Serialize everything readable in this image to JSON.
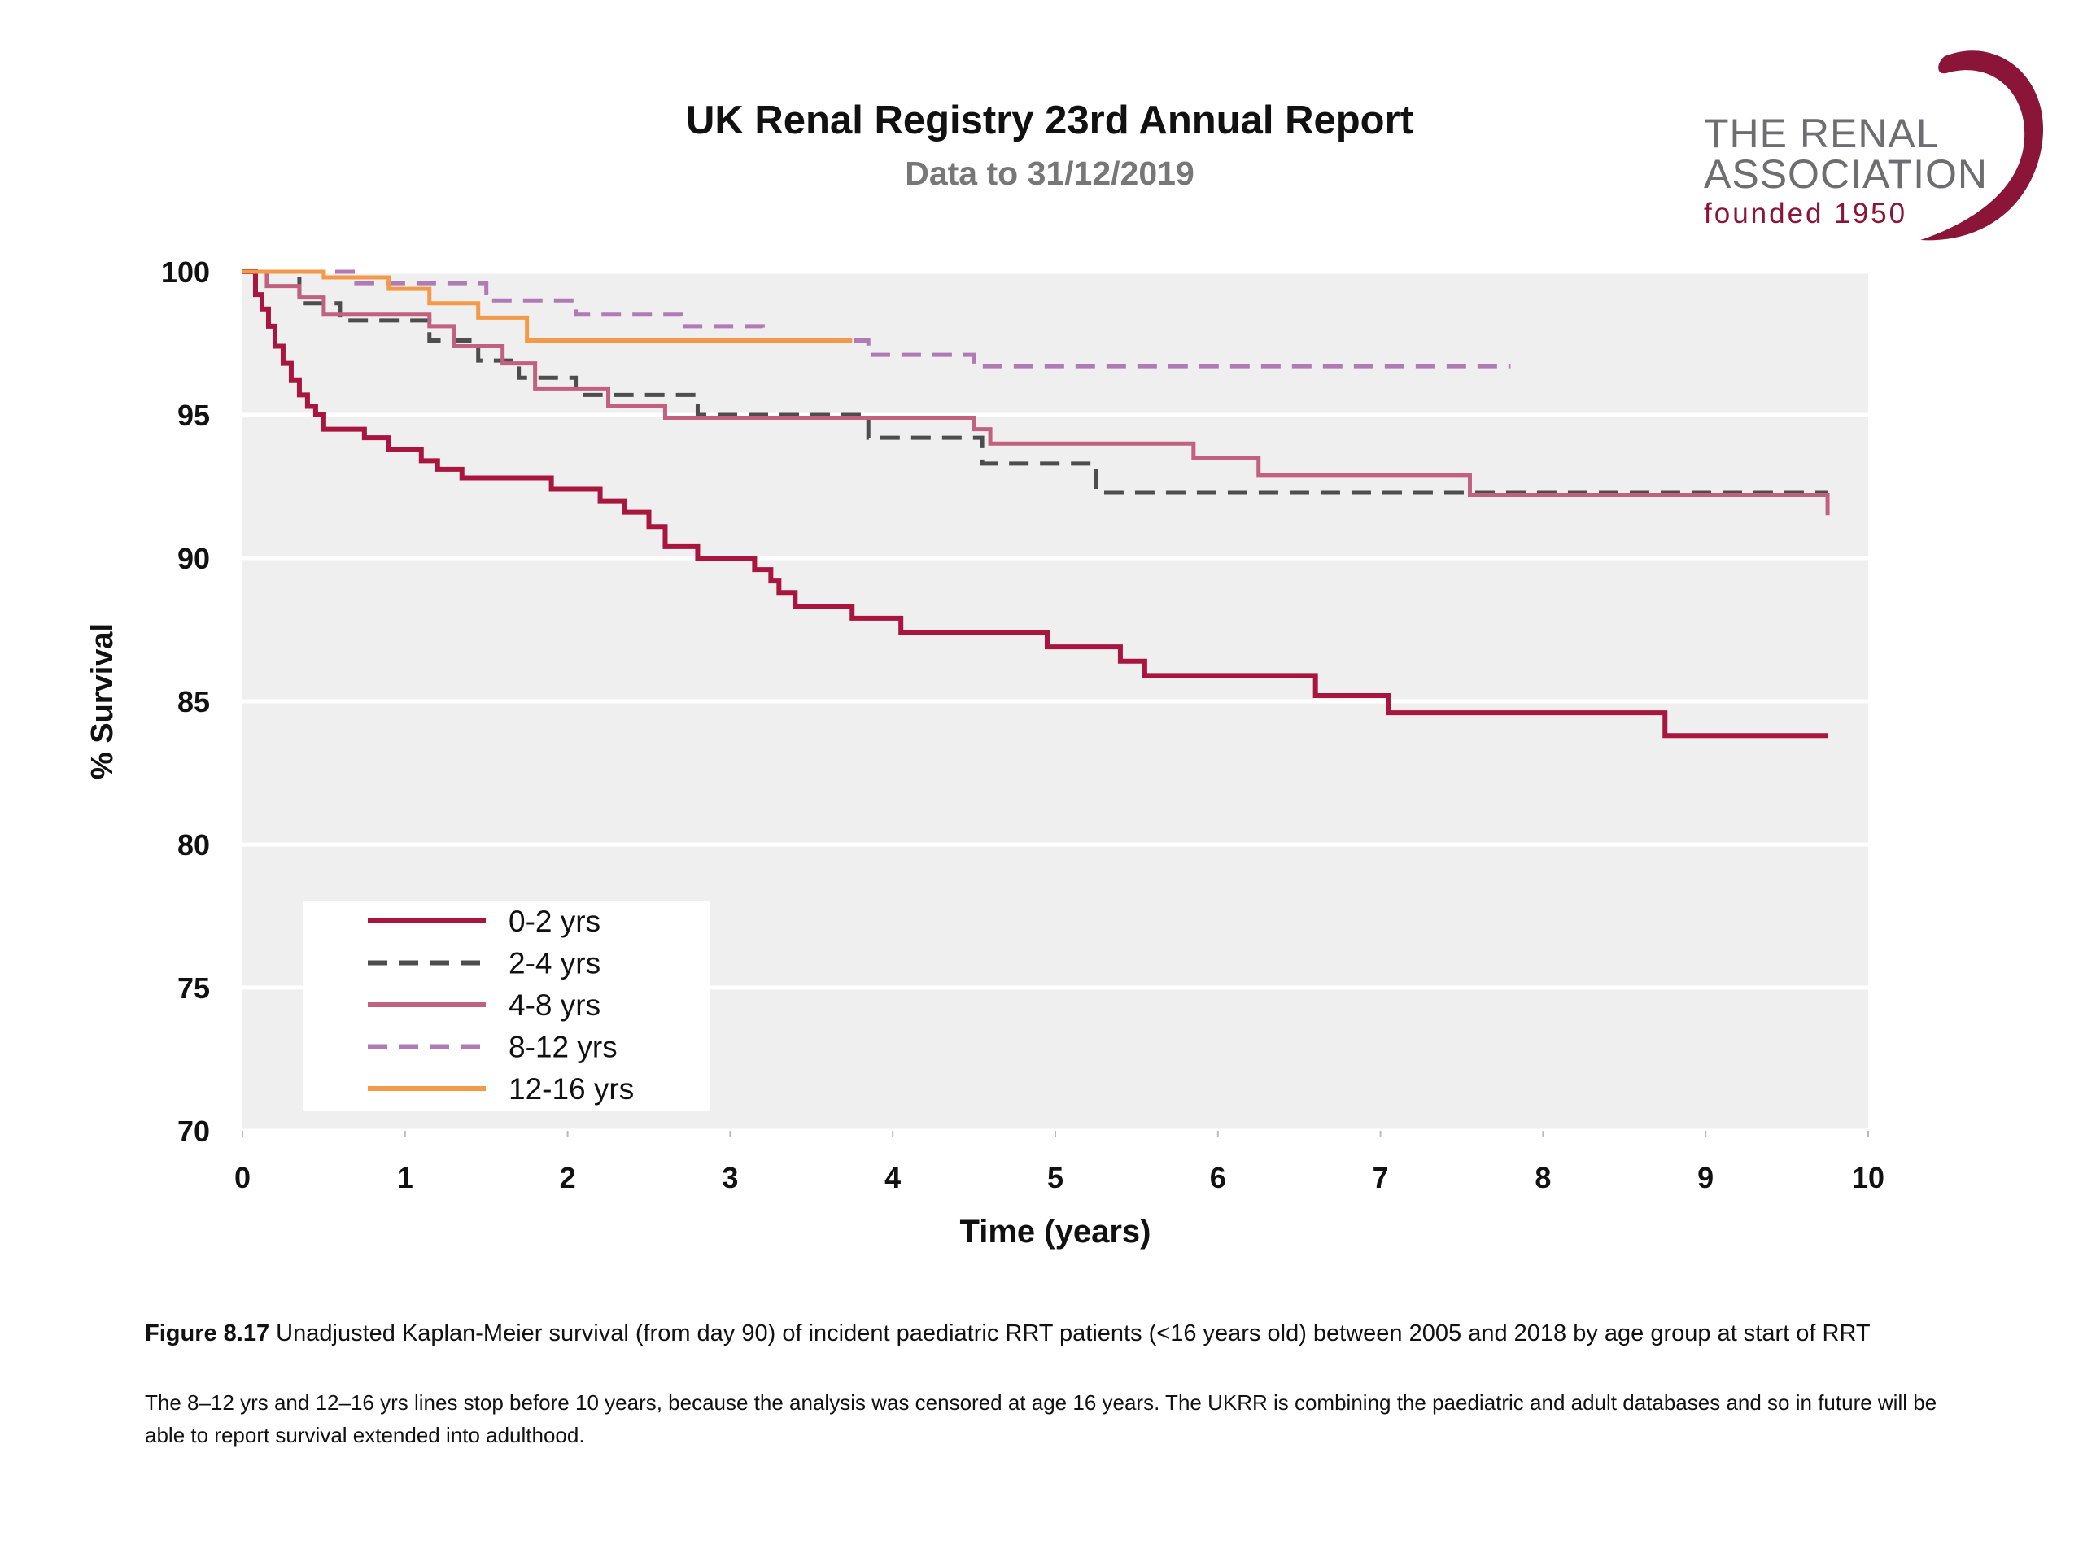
{
  "header": {
    "title": "UK Renal Registry 23rd Annual Report",
    "subtitle": "Data to 31/12/2019"
  },
  "logo": {
    "line1": "THE RENAL",
    "line2": "ASSOCIATION",
    "line3": "founded 1950",
    "color": "#8a1538"
  },
  "caption": {
    "figure_label": "Figure 8.17",
    "figure_text": " Unadjusted Kaplan-Meier survival (from day 90) of incident paediatric RRT patients (<16 years old) between 2005 and 2018 by age group at start of RRT",
    "note": "The 8–12 yrs and 12–16 yrs lines stop before 10 years, because the analysis was censored at age 16 years. The UKRR is combining the paediatric and adult databases and so in future will be able to report survival extended into adulthood."
  },
  "chart_data": {
    "type": "line",
    "step": true,
    "xlabel": "Time (years)",
    "ylabel": "% Survival",
    "xlim": [
      0,
      10
    ],
    "ylim": [
      70,
      100
    ],
    "xticks": [
      "0",
      "1",
      "2",
      "3",
      "4",
      "5",
      "6",
      "7",
      "8",
      "9",
      "10"
    ],
    "yticks": [
      "70",
      "75",
      "80",
      "85",
      "90",
      "95",
      "100"
    ],
    "grid": "horizontal",
    "background": "#efefef",
    "legend_position": "bottom-left",
    "series": [
      {
        "name": "0-2 yrs",
        "color": "#a8153f",
        "dash": "solid",
        "x": [
          0,
          0.08,
          0.12,
          0.16,
          0.2,
          0.25,
          0.3,
          0.35,
          0.4,
          0.45,
          0.5,
          0.55,
          0.75,
          0.9,
          1.1,
          1.2,
          1.35,
          1.9,
          2.2,
          2.35,
          2.5,
          2.6,
          2.8,
          3.15,
          3.25,
          3.3,
          3.4,
          3.75,
          4.05,
          4.95,
          5.4,
          5.55,
          6.6,
          7.05,
          8.75,
          9.1,
          9.75
        ],
        "y": [
          100,
          99.2,
          98.7,
          98.1,
          97.4,
          96.8,
          96.2,
          95.7,
          95.3,
          95,
          94.5,
          94.5,
          94.2,
          93.8,
          93.4,
          93.1,
          92.8,
          92.4,
          92,
          91.6,
          91.1,
          90.4,
          90,
          89.6,
          89.2,
          88.8,
          88.3,
          87.9,
          87.4,
          86.9,
          86.4,
          85.9,
          85.2,
          84.6,
          83.8,
          83.8,
          83.8
        ]
      },
      {
        "name": "2-4 yrs",
        "color": "#4d4d4d",
        "dash": "dashed",
        "x": [
          0,
          0.35,
          0.6,
          1.15,
          1.45,
          1.7,
          2.05,
          2.8,
          3.85,
          4.55,
          5.25,
          9.75
        ],
        "y": [
          100,
          98.9,
          98.3,
          97.6,
          96.9,
          96.3,
          95.7,
          95,
          94.2,
          93.3,
          92.3,
          92.3
        ]
      },
      {
        "name": "4-8 yrs",
        "color": "#c1607f",
        "dash": "solid",
        "x": [
          0,
          0.15,
          0.35,
          0.5,
          1.15,
          1.3,
          1.6,
          1.8,
          2.25,
          2.6,
          4.5,
          4.6,
          5.85,
          6.25,
          7.55,
          9.75
        ],
        "y": [
          100,
          99.5,
          99.1,
          98.5,
          98.1,
          97.4,
          96.8,
          95.9,
          95.3,
          94.9,
          94.5,
          94,
          93.5,
          92.9,
          92.2,
          91.5
        ]
      },
      {
        "name": "8-12 yrs",
        "color": "#b07ab5",
        "dash": "dashed",
        "x": [
          0,
          0.7,
          1.5,
          2.05,
          2.7,
          3.2,
          3.85,
          4.5,
          7.8
        ],
        "y": [
          100,
          99.6,
          99,
          98.5,
          98.1,
          97.6,
          97.1,
          96.7,
          96.7
        ]
      },
      {
        "name": "12-16 yrs",
        "color": "#f29a4a",
        "dash": "solid",
        "x": [
          0,
          0.5,
          0.9,
          1.15,
          1.45,
          1.75,
          3.75
        ],
        "y": [
          100,
          99.8,
          99.4,
          98.9,
          98.4,
          97.6,
          97.6
        ]
      }
    ]
  }
}
